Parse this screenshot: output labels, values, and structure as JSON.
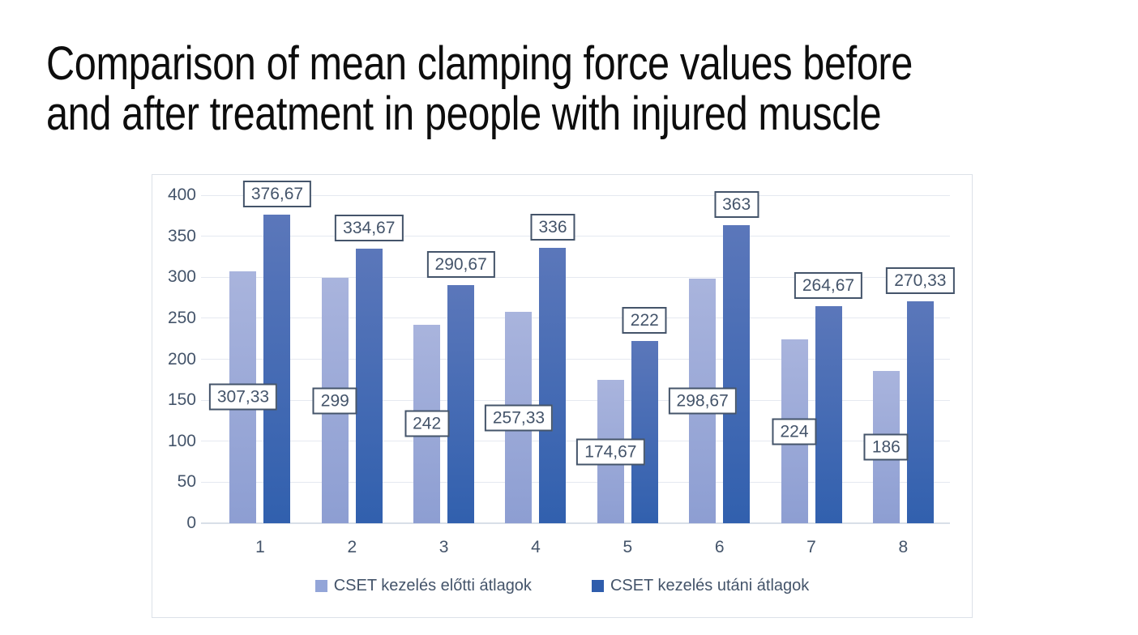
{
  "title": {
    "lines": [
      "Comparison of mean clamping force values before",
      "and after treatment in people with injured muscle"
    ]
  },
  "chart_data": {
    "type": "bar",
    "title": "Comparison of mean clamping force values before and after treatment in people with injured muscle",
    "categories": [
      "1",
      "2",
      "3",
      "4",
      "5",
      "6",
      "7",
      "8"
    ],
    "series": [
      {
        "name": "CSET kezelés előtti átlagok",
        "values": [
          307.33,
          299,
          242,
          257.33,
          174.67,
          298.67,
          224,
          186
        ],
        "labels": [
          "307,33",
          "299",
          "242",
          "257,33",
          "174,67",
          "298,67",
          "224",
          "186"
        ],
        "color_top": "#a9b4dd",
        "color_bottom": "#8d9ed2",
        "legend_color": "#93a5d8"
      },
      {
        "name": "CSET kezelés utáni átlagok",
        "values": [
          376.67,
          334.67,
          290.67,
          336,
          222,
          363,
          264.67,
          270.33
        ],
        "labels": [
          "376,67",
          "334,67",
          "290,67",
          "336",
          "222",
          "363",
          "264,67",
          "270,33"
        ],
        "color_top": "#5b77ba",
        "color_bottom": "#3160ae",
        "legend_color": "#2f5dac"
      }
    ],
    "y_axis": {
      "min": 0,
      "max": 400,
      "step": 50,
      "ticks": [
        "0",
        "50",
        "100",
        "150",
        "200",
        "250",
        "300",
        "350",
        "400"
      ]
    },
    "x_axis": {
      "ticks": [
        "1",
        "2",
        "3",
        "4",
        "5",
        "6",
        "7",
        "8"
      ]
    },
    "grid": true,
    "legend_position": "bottom",
    "label_decimal_separator": ",",
    "colors": {
      "axis_text": "#44546a",
      "data_label_border": "#44546a",
      "gridline": "#e5e9f0",
      "frame_border": "#dce1e8",
      "background": "#ffffff"
    }
  }
}
